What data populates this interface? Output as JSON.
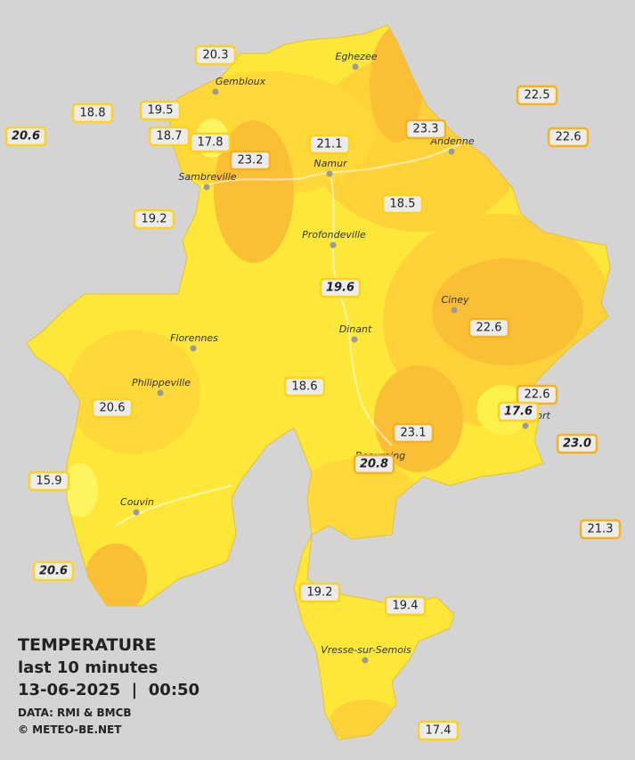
{
  "header": {
    "title": "TEMPERATURE",
    "subtitle": "last 10 minutes",
    "datetime": "13-06-2025  |  00:50",
    "source": "DATA: RMI & BMCB",
    "copyright": "© METEO-BE.NET"
  },
  "cities": [
    "Eghezee",
    "Gembloux",
    "Andenne",
    "Namur",
    "Sambreville",
    "Profondeville",
    "Ciney",
    "Dinant",
    "Florennes",
    "Philippeville",
    "Rochefort",
    "Beauraing",
    "Couvin",
    "Vresse-sur-Semois"
  ],
  "readings": [
    {
      "label": "20.3"
    },
    {
      "label": "18.8"
    },
    {
      "label": "19.5"
    },
    {
      "label": "20.6",
      "italic": true
    },
    {
      "label": "18.7"
    },
    {
      "label": "17.8"
    },
    {
      "label": "23.2"
    },
    {
      "label": "21.1"
    },
    {
      "label": "23.3"
    },
    {
      "label": "22.5"
    },
    {
      "label": "22.6"
    },
    {
      "label": "18.5"
    },
    {
      "label": "19.2"
    },
    {
      "label": "19.6",
      "italic": true
    },
    {
      "label": "22.6"
    },
    {
      "label": "18.6"
    },
    {
      "label": "22.6"
    },
    {
      "label": "17.6",
      "italic": true
    },
    {
      "label": "20.6"
    },
    {
      "label": "23.1"
    },
    {
      "label": "23.0",
      "italic": true
    },
    {
      "label": "20.8",
      "italic": true
    },
    {
      "label": "15.9"
    },
    {
      "label": "21.3"
    },
    {
      "label": "20.6",
      "italic": true
    },
    {
      "label": "19.2"
    },
    {
      "label": "19.4"
    },
    {
      "label": "17.4"
    }
  ]
}
